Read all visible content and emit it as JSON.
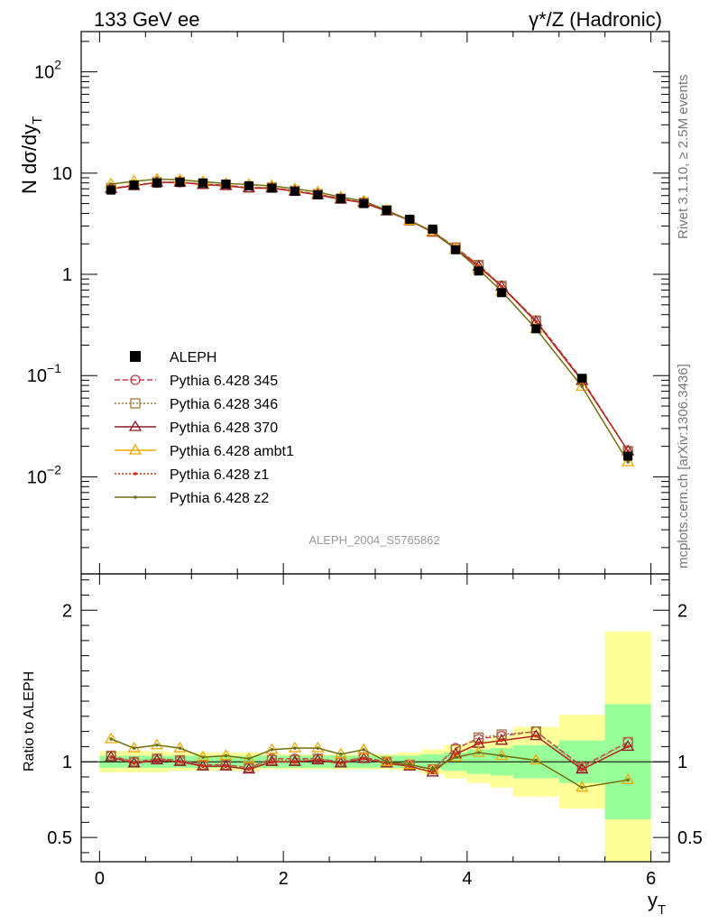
{
  "header": {
    "left": "133 GeV ee",
    "right": "γ*/Z (Hadronic)"
  },
  "side_text": {
    "top": "Rivet 3.1.10, ≥ 2.5M events",
    "bottom": "mcplots.cern.ch [arXiv:1306.3436]"
  },
  "watermark": "ALEPH_2004_S5765862",
  "colors": {
    "data": "#000000",
    "p345": "#c83c50",
    "p346": "#a07a3c",
    "p370": "#8c1a28",
    "ambt1": "#f0a800",
    "z1": "#dc2814",
    "z2": "#6e6e14",
    "band_inner": "#99ff99",
    "band_outer": "#ffff99"
  },
  "chart_data": [
    {
      "type": "line",
      "panel": "main",
      "ylabel": "N dσ/dy",
      "ylabel_sub": "T",
      "yscale": "log",
      "ylim": [
        0.0011,
        250
      ],
      "xlim": [
        -0.2,
        6.2
      ],
      "y_tick_labels": [
        {
          "v": 100,
          "base": "10",
          "exp": "2"
        },
        {
          "v": 10,
          "base": "10",
          "exp": ""
        },
        {
          "v": 1,
          "base": "1",
          "exp": ""
        },
        {
          "v": 0.1,
          "base": "10",
          "exp": "−1"
        },
        {
          "v": 0.01,
          "base": "10",
          "exp": "−2"
        }
      ],
      "x": [
        0.125,
        0.375,
        0.625,
        0.875,
        1.125,
        1.375,
        1.625,
        1.875,
        2.125,
        2.375,
        2.625,
        2.875,
        3.125,
        3.375,
        3.625,
        3.875,
        4.125,
        4.375,
        4.75,
        5.25,
        5.75
      ],
      "data": {
        "name": "ALEPH",
        "values": [
          6.8,
          7.6,
          8.0,
          8.1,
          8.0,
          7.8,
          7.5,
          7.1,
          6.6,
          6.1,
          5.6,
          5.0,
          4.3,
          3.5,
          2.8,
          1.75,
          1.08,
          0.66,
          0.29,
          0.094,
          0.016
        ]
      },
      "series": [
        {
          "name": "Pythia 6.428 345",
          "key": "p345",
          "style": "dashed",
          "marker": "circle",
          "values": [
            7.0,
            7.6,
            8.0,
            8.1,
            7.8,
            7.6,
            7.2,
            7.2,
            6.7,
            6.2,
            5.6,
            5.1,
            4.3,
            3.4,
            2.65,
            1.85,
            1.24,
            0.77,
            0.35,
            0.092,
            0.018
          ]
        },
        {
          "name": "Pythia 6.428 346",
          "key": "p346",
          "style": "dotted",
          "marker": "square",
          "values": [
            7.1,
            7.6,
            8.1,
            8.2,
            7.8,
            7.6,
            7.2,
            7.2,
            6.7,
            6.2,
            5.6,
            5.1,
            4.3,
            3.4,
            2.65,
            1.84,
            1.24,
            0.77,
            0.35,
            0.091,
            0.018
          ]
        },
        {
          "name": "Pythia 6.428 370",
          "key": "p370",
          "style": "solid",
          "marker": "triangle",
          "values": [
            7.0,
            7.5,
            8.1,
            8.1,
            7.7,
            7.5,
            7.1,
            7.1,
            6.6,
            6.1,
            5.5,
            5.1,
            4.2,
            3.4,
            2.6,
            1.78,
            1.2,
            0.76,
            0.34,
            0.089,
            0.018
          ]
        },
        {
          "name": "Pythia 6.428 ambt1",
          "key": "ambt1",
          "style": "solid",
          "marker": "triangle",
          "values": [
            7.8,
            8.3,
            8.7,
            8.6,
            8.2,
            7.9,
            7.7,
            7.5,
            7.0,
            6.5,
            5.8,
            5.3,
            4.3,
            3.4,
            2.65,
            1.78,
            1.12,
            0.68,
            0.29,
            0.078,
            0.014
          ]
        },
        {
          "name": "Pythia 6.428 z1",
          "key": "z1",
          "style": "dotted",
          "marker": "dot",
          "values": [
            7.0,
            7.5,
            8.1,
            8.1,
            7.7,
            7.5,
            7.1,
            7.1,
            6.6,
            6.1,
            5.5,
            5.1,
            4.2,
            3.4,
            2.6,
            1.78,
            1.2,
            0.76,
            0.34,
            0.089,
            0.018
          ]
        },
        {
          "name": "Pythia 6.428 z2",
          "key": "z2",
          "style": "solid",
          "marker": "dot",
          "values": [
            7.8,
            8.3,
            8.7,
            8.6,
            8.2,
            7.9,
            7.7,
            7.5,
            7.0,
            6.5,
            5.8,
            5.3,
            4.3,
            3.4,
            2.65,
            1.78,
            1.12,
            0.68,
            0.29,
            0.078,
            0.014
          ]
        }
      ],
      "legend_position": "center-left"
    },
    {
      "type": "line",
      "panel": "ratio",
      "ylabel": "Ratio to ALEPH",
      "xlabel": "y",
      "xlabel_sub": "T",
      "ylim": [
        0.34,
        2.24
      ],
      "xlim": [
        -0.2,
        6.2
      ],
      "y_ticks": [
        0.5,
        1,
        2
      ],
      "y_tick_labels": [
        "0.5",
        "1",
        "2"
      ],
      "x_ticks": [
        0,
        2,
        4,
        6
      ],
      "x_tick_labels": [
        "0",
        "2",
        "4",
        "6"
      ],
      "bins": [
        [
          0,
          0.25
        ],
        [
          0.25,
          0.5
        ],
        [
          0.5,
          0.75
        ],
        [
          0.75,
          1
        ],
        [
          1,
          1.25
        ],
        [
          1.25,
          1.5
        ],
        [
          1.5,
          1.75
        ],
        [
          1.75,
          2
        ],
        [
          2,
          2.25
        ],
        [
          2.25,
          2.5
        ],
        [
          2.5,
          2.75
        ],
        [
          2.75,
          3
        ],
        [
          3,
          3.25
        ],
        [
          3.25,
          3.5
        ],
        [
          3.5,
          3.75
        ],
        [
          3.75,
          4
        ],
        [
          4,
          4.25
        ],
        [
          4.25,
          4.5
        ],
        [
          4.5,
          5
        ],
        [
          5,
          5.5
        ],
        [
          5.5,
          6
        ]
      ],
      "band_inner": [
        0.04,
        0.04,
        0.04,
        0.04,
        0.04,
        0.04,
        0.04,
        0.04,
        0.04,
        0.04,
        0.04,
        0.04,
        0.04,
        0.04,
        0.05,
        0.06,
        0.08,
        0.09,
        0.11,
        0.14,
        0.38
      ],
      "band_outer": [
        0.07,
        0.07,
        0.07,
        0.06,
        0.06,
        0.06,
        0.06,
        0.05,
        0.05,
        0.05,
        0.05,
        0.05,
        0.05,
        0.06,
        0.08,
        0.11,
        0.14,
        0.17,
        0.23,
        0.31,
        0.86
      ],
      "series": [
        {
          "name": "Pythia 6.428 345",
          "key": "p345",
          "style": "dashed",
          "marker": "circle",
          "values": [
            1.04,
            1.0,
            1.02,
            1.01,
            0.98,
            0.98,
            0.96,
            1.02,
            1.02,
            1.02,
            1.0,
            1.03,
            1.0,
            0.98,
            0.95,
            1.09,
            1.15,
            1.17,
            1.2,
            0.97,
            1.13
          ]
        },
        {
          "name": "Pythia 6.428 346",
          "key": "p346",
          "style": "dotted",
          "marker": "square",
          "values": [
            1.04,
            1.0,
            1.02,
            1.01,
            0.98,
            0.98,
            0.96,
            1.01,
            1.01,
            1.02,
            1.0,
            1.03,
            1.0,
            0.98,
            0.95,
            1.08,
            1.16,
            1.18,
            1.2,
            0.96,
            1.13
          ]
        },
        {
          "name": "Pythia 6.428 370",
          "key": "p370",
          "style": "solid",
          "marker": "triangle",
          "values": [
            1.03,
            0.99,
            1.01,
            1.0,
            0.97,
            0.97,
            0.95,
            1.0,
            1.0,
            1.01,
            0.99,
            1.02,
            0.99,
            0.97,
            0.93,
            1.05,
            1.12,
            1.14,
            1.17,
            0.95,
            1.1
          ]
        },
        {
          "name": "Pythia 6.428 ambt1",
          "key": "ambt1",
          "style": "solid",
          "marker": "triangle",
          "values": [
            1.15,
            1.09,
            1.11,
            1.09,
            1.03,
            1.04,
            1.02,
            1.08,
            1.09,
            1.09,
            1.05,
            1.08,
            1.0,
            0.98,
            0.95,
            1.03,
            1.06,
            1.04,
            1.01,
            0.83,
            0.88
          ]
        },
        {
          "name": "Pythia 6.428 z1",
          "key": "z1",
          "style": "dotted",
          "marker": "dot",
          "values": [
            1.03,
            0.99,
            1.01,
            1.0,
            0.97,
            0.97,
            0.95,
            1.0,
            1.0,
            1.01,
            0.99,
            1.02,
            0.99,
            0.97,
            0.93,
            1.05,
            1.12,
            1.14,
            1.17,
            0.95,
            1.1
          ]
        },
        {
          "name": "Pythia 6.428 z2",
          "key": "z2",
          "style": "solid",
          "marker": "dot",
          "values": [
            1.15,
            1.09,
            1.11,
            1.09,
            1.03,
            1.04,
            1.02,
            1.08,
            1.09,
            1.09,
            1.05,
            1.08,
            1.0,
            0.98,
            0.95,
            1.03,
            1.06,
            1.04,
            1.01,
            0.83,
            0.88
          ]
        }
      ]
    }
  ]
}
